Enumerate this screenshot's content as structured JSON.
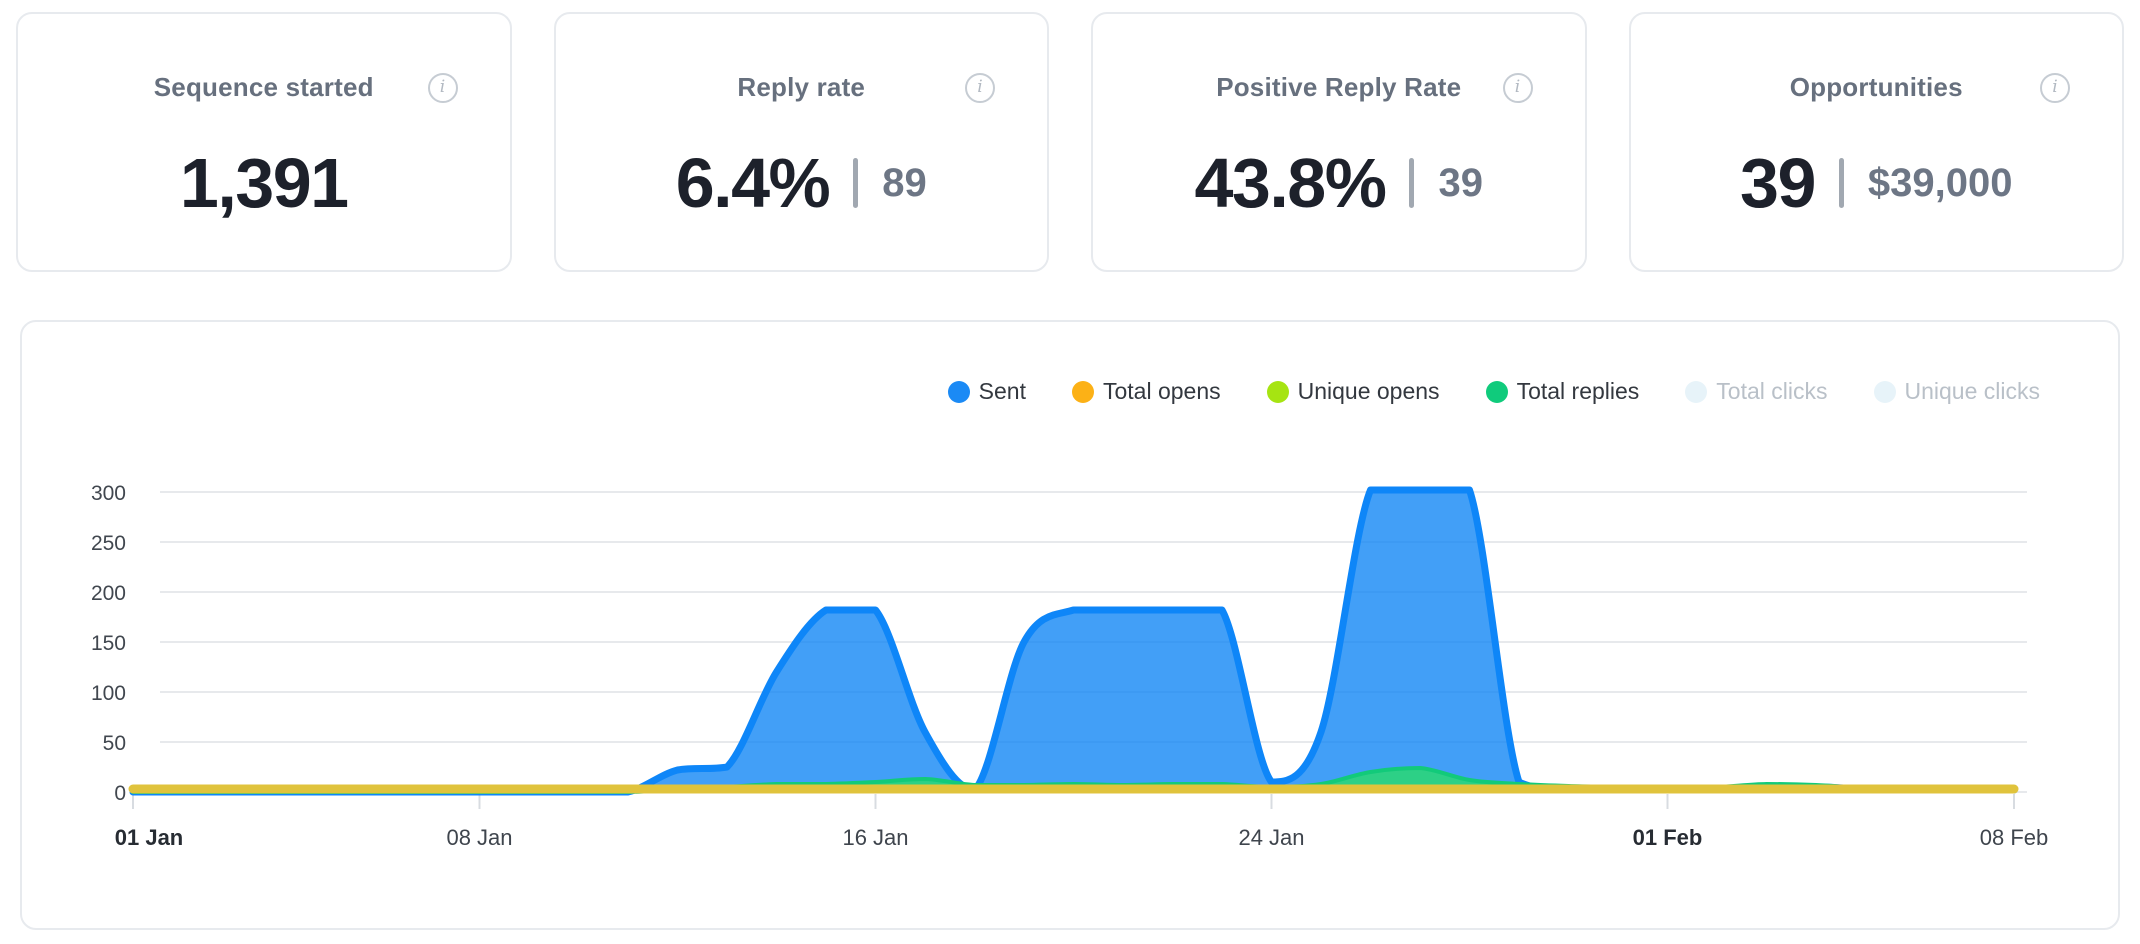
{
  "stats": [
    {
      "label": "Sequence started",
      "value": "1,391",
      "secondary": null
    },
    {
      "label": "Reply rate",
      "value": "6.4%",
      "secondary": "89"
    },
    {
      "label": "Positive Reply Rate",
      "value": "43.8%",
      "secondary": "39"
    },
    {
      "label": "Opportunities",
      "value": "39",
      "secondary": "$39,000"
    }
  ],
  "info_icon_glyph": "i",
  "colors": {
    "card_border": "#e7eaee",
    "title_text": "#67707e",
    "value_text": "#1d212b",
    "secondary_text": "#6d7685",
    "grid_line": "#e7e9ec",
    "tick_line": "#d8dce1",
    "disabled_legend_dot": "#e7f3f9",
    "disabled_legend_text": "#b9c0c8"
  },
  "chart_data": {
    "type": "area",
    "title": "",
    "xlabel": "",
    "ylabel": "",
    "start_date": "01 Jan",
    "end_date": "08 Feb",
    "n_points": 39,
    "ylim": [
      0,
      300
    ],
    "yticks": [
      0,
      50,
      100,
      150,
      200,
      250,
      300
    ],
    "grid": "horizontal",
    "legend_position": "top-right",
    "x_ticks": [
      {
        "label": "01 Jan",
        "day": 0,
        "bold": true
      },
      {
        "label": "08 Jan",
        "day": 7,
        "bold": false
      },
      {
        "label": "16 Jan",
        "day": 15,
        "bold": false
      },
      {
        "label": "24 Jan",
        "day": 23,
        "bold": false
      },
      {
        "label": "01 Feb",
        "day": 31,
        "bold": true
      },
      {
        "label": "08 Feb",
        "day": 38,
        "bold": false
      }
    ],
    "series": [
      {
        "name": "Sent",
        "enabled": true,
        "kind": "area",
        "z": 1,
        "legend_color": "#1b8af5",
        "line_color": "#0e86f8",
        "fill_color": "#0d84f5",
        "fill_opacity": 0.78,
        "stroke_width": 7,
        "values": [
          0,
          0,
          0,
          0,
          0,
          0,
          0,
          0,
          0,
          0,
          0,
          22,
          25,
          120,
          182,
          182,
          60,
          2,
          150,
          182,
          182,
          182,
          182,
          10,
          60,
          302,
          302,
          302,
          10,
          2,
          2,
          2,
          2,
          3,
          5,
          3,
          2,
          2,
          2
        ]
      },
      {
        "name": "Total opens",
        "enabled": true,
        "kind": "line",
        "z": 4,
        "legend_color": "#fcb116",
        "line_color": "#e0c33c",
        "fill_color": null,
        "fill_opacity": 0,
        "stroke_width": 9,
        "values": [
          3,
          3,
          3,
          3,
          3,
          3,
          3,
          3,
          3,
          3,
          3,
          3,
          3,
          3,
          3,
          3,
          3,
          3,
          3,
          3,
          3,
          3,
          3,
          3,
          3,
          3,
          3,
          3,
          3,
          3,
          3,
          3,
          3,
          3,
          3,
          3,
          3,
          3,
          3
        ]
      },
      {
        "name": "Unique opens",
        "enabled": true,
        "kind": "line",
        "z": 3,
        "legend_color": "#a6e412",
        "line_color": "#a6e412",
        "fill_color": null,
        "fill_opacity": 0,
        "stroke_width": 5,
        "values": [
          2,
          2,
          2,
          2,
          2,
          2,
          2,
          2,
          2,
          2,
          2,
          2,
          2,
          2,
          2,
          2,
          2,
          2,
          2,
          2,
          2,
          2,
          2,
          2,
          2,
          2,
          2,
          2,
          2,
          2,
          2,
          2,
          2,
          2,
          2,
          2,
          2,
          2,
          2
        ]
      },
      {
        "name": "Total replies",
        "enabled": true,
        "kind": "area",
        "z": 2,
        "legend_color": "#10cb7c",
        "line_color": "#12ca7a",
        "fill_color": "#2cd37f",
        "fill_opacity": 0.95,
        "stroke_width": 4,
        "values": [
          0,
          0,
          0,
          0,
          0,
          0,
          0,
          0,
          0,
          0,
          0,
          2,
          5,
          8,
          8,
          10,
          13,
          7,
          7,
          8,
          7,
          8,
          8,
          5,
          8,
          20,
          24,
          12,
          8,
          6,
          5,
          4,
          5,
          8,
          7,
          4,
          5,
          5,
          3
        ]
      },
      {
        "name": "Total clicks",
        "enabled": false,
        "kind": "line",
        "z": 5,
        "legend_color": "#e7f3f9",
        "line_color": "#e7f3f9",
        "fill_color": null,
        "fill_opacity": 0,
        "stroke_width": 5,
        "values": []
      },
      {
        "name": "Unique clicks",
        "enabled": false,
        "kind": "line",
        "z": 6,
        "legend_color": "#e7f3f9",
        "line_color": "#e7f3f9",
        "fill_color": null,
        "fill_opacity": 0,
        "stroke_width": 5,
        "values": []
      }
    ]
  }
}
